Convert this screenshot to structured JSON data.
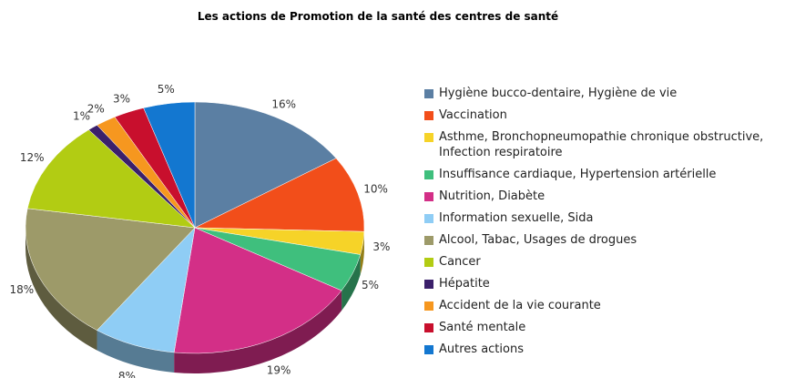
{
  "chart_data": {
    "type": "pie",
    "title": "Les actions de Promotion de la santé des centres de santé",
    "categories": [
      "Hygiène bucco-dentaire, Hygiène de vie",
      "Vaccination",
      "Asthme, Bronchopneumopathie chronique obstructive, Infection respiratoire",
      "Insuffisance cardiaque, Hypertension artérielle",
      "Nutrition, Diabète",
      "Information sexuelle, Sida",
      "Alcool, Tabac, Usages de drogues",
      "Cancer",
      "Hépatite",
      "Accident de la vie courante",
      "Santé mentale",
      "Autres actions"
    ],
    "values": [
      16,
      10,
      3,
      5,
      19,
      8,
      18,
      12,
      1,
      2,
      3,
      5
    ],
    "value_labels": [
      "16%",
      "10%",
      "3%",
      "5%",
      "19%",
      "8%",
      "18%",
      "12%",
      "1%",
      "2%",
      "3%",
      "5%"
    ],
    "colors": [
      "#5b7fa3",
      "#f24e1a",
      "#f6d328",
      "#3fbf7d",
      "#d32f87",
      "#8fcdf5",
      "#9d9a69",
      "#b2cc13",
      "#3b206b",
      "#f6971f",
      "#c80f2d",
      "#1377d0"
    ],
    "legend": "right"
  }
}
